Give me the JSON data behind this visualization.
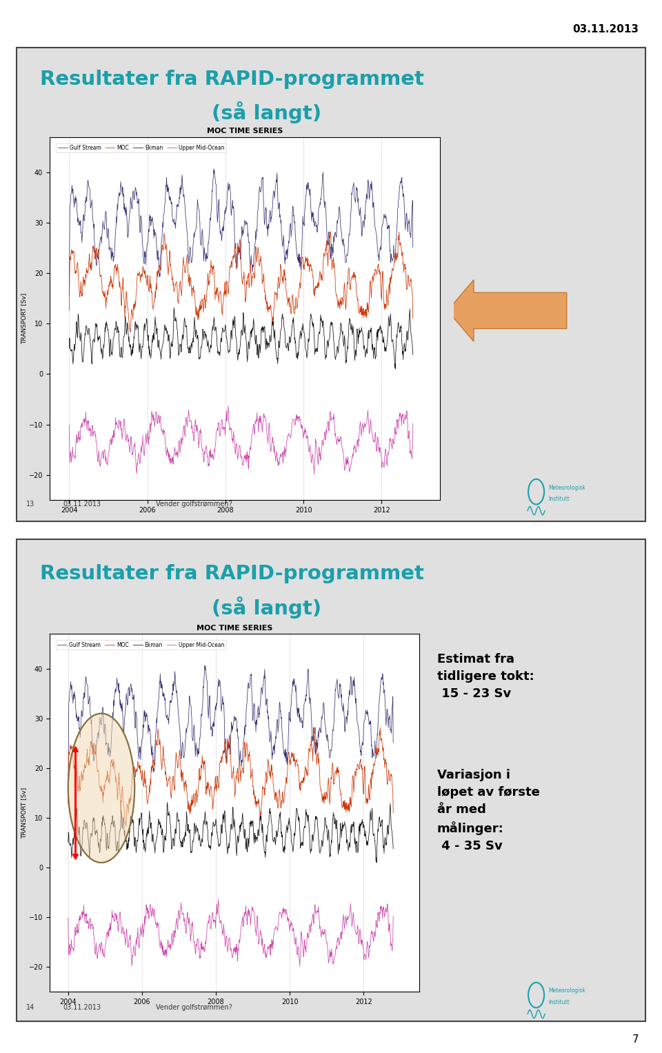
{
  "background_color": "#ffffff",
  "slide_bg_color": "#e0e0e0",
  "date_text": "03.11.2013",
  "page_number": "7",
  "slide1": {
    "title_line1": "Resultater fra RAPID-programmet",
    "title_line2": "(så langt)",
    "title_color": "#1a9faa",
    "slide_num": "13",
    "footer_date": "03.11.2013",
    "footer_text": "Vender golfstrømmen?"
  },
  "slide2": {
    "title_line1": "Resultater fra RAPID-programmet",
    "title_line2": "(så langt)",
    "title_color": "#1a9faa",
    "slide_num": "14",
    "footer_date": "03.11.2013",
    "footer_text": "Vender golfstrømmen?",
    "annotation1": "Estimat fra\ntidligere tokt:\n 15 - 23 Sv",
    "annotation2": "Variasjon i\nløpet av første\når med\nmålinger:\n 4 - 35 Sv"
  },
  "plot": {
    "gulf_stream_color": "#3a3070",
    "moc_color": "#cc3300",
    "ekman_color": "#111111",
    "upper_mid_color": "#cc44aa",
    "yticks": [
      -20,
      -10,
      0,
      10,
      20,
      30,
      40
    ],
    "xticks": [
      2004,
      2006,
      2008,
      2010,
      2012
    ],
    "ylim": [
      -25,
      47
    ],
    "xlim": [
      2003.5,
      2013.5
    ]
  },
  "border_color": "#444444",
  "logo_color": "#1a9faa",
  "arrow_color": "#e8a060",
  "arrow_edge_color": "#c07830"
}
